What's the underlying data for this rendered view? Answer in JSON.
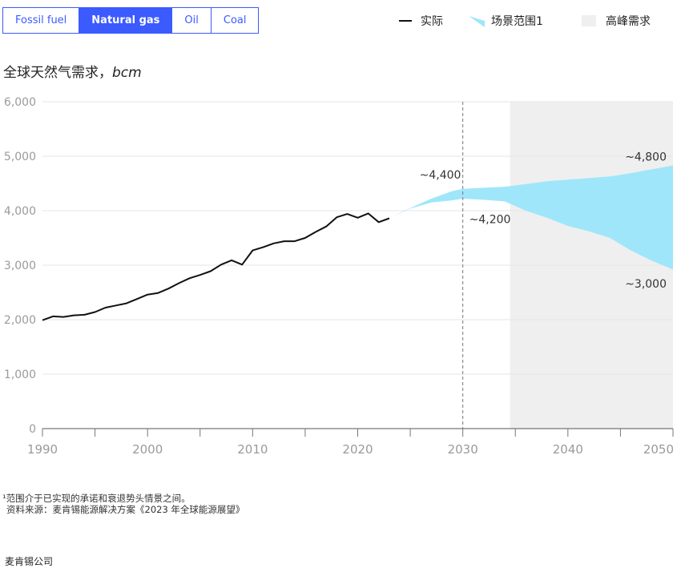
{
  "tabs": [
    {
      "label": "Fossil fuel",
      "active": false
    },
    {
      "label": "Natural gas",
      "active": true
    },
    {
      "label": "Oil",
      "active": false
    },
    {
      "label": "Coal",
      "active": false
    }
  ],
  "legend": {
    "actual": "实际",
    "scenario": "场景范围1",
    "peak": "高峰需求"
  },
  "colors": {
    "accent": "#3b5bff",
    "actual_line": "#111111",
    "scenario_fill": "#9fe6fb",
    "peak_shading": "#efefef",
    "grid": "#e6e6e6",
    "tick_text": "#9a9a9a"
  },
  "chart_title": "全球天然气需求，",
  "chart_unit": "bcm",
  "footnote": "¹范围介于已实现的承诺和衰退势头情景之间。",
  "source": "资料来源：麦肯锡能源解决方案《2023 年全球能源展望》",
  "brand": "麦肯锡公司",
  "chart_data": {
    "type": "area",
    "title": "全球天然气需求，bcm",
    "xlabel": "",
    "ylabel": "bcm",
    "xlim": [
      1990,
      2050
    ],
    "ylim": [
      0,
      6000
    ],
    "yticks": [
      0,
      1000,
      2000,
      3000,
      4000,
      5000,
      6000
    ],
    "ytick_labels": [
      "0",
      "1,000",
      "2,000",
      "3,000",
      "4,000",
      "5,000",
      "6,000"
    ],
    "xticks": [
      1990,
      2000,
      2010,
      2020,
      2030,
      2040,
      2050
    ],
    "xtick_labels": [
      "1990",
      "2000",
      "2010",
      "2020",
      "2030",
      "2040",
      "2050"
    ],
    "grid": true,
    "vertical_marker_year": 2030,
    "peak_demand_start": 2034.5,
    "series": [
      {
        "name": "实际",
        "type": "line",
        "x": [
          1990,
          1991,
          1992,
          1993,
          1994,
          1995,
          1996,
          1997,
          1998,
          1999,
          2000,
          2001,
          2002,
          2003,
          2004,
          2005,
          2006,
          2007,
          2008,
          2009,
          2010,
          2011,
          2012,
          2013,
          2014,
          2015,
          2016,
          2017,
          2018,
          2019,
          2020,
          2021,
          2022,
          2023
        ],
        "y": [
          1990,
          2060,
          2050,
          2080,
          2090,
          2140,
          2220,
          2260,
          2300,
          2380,
          2460,
          2490,
          2570,
          2670,
          2760,
          2820,
          2890,
          3010,
          3090,
          3010,
          3270,
          3330,
          3400,
          3440,
          3440,
          3500,
          3610,
          3710,
          3880,
          3940,
          3870,
          3950,
          3790,
          3860
        ]
      },
      {
        "name": "场景范围1",
        "type": "band",
        "x": [
          2023,
          2025,
          2027,
          2029,
          2030,
          2032,
          2034,
          2036,
          2038,
          2040,
          2042,
          2044,
          2046,
          2048,
          2050,
          2050
        ],
        "upper": [
          3860,
          4050,
          4220,
          4360,
          4400,
          4420,
          4440,
          4490,
          4540,
          4570,
          4600,
          4630,
          4690,
          4760,
          4830,
          4900
        ],
        "lower": [
          3860,
          4040,
          4150,
          4190,
          4220,
          4200,
          4170,
          4000,
          3870,
          3720,
          3620,
          3500,
          3270,
          3080,
          2920,
          3000
        ]
      }
    ],
    "annotations": [
      {
        "text": "~4,400",
        "x": 2030,
        "y": 4400
      },
      {
        "text": "~4,200",
        "x": 2030,
        "y": 4200
      },
      {
        "text": "~4,800",
        "x": 2050,
        "y": 4800
      },
      {
        "text": "~3,000",
        "x": 2050,
        "y": 3000
      }
    ]
  }
}
